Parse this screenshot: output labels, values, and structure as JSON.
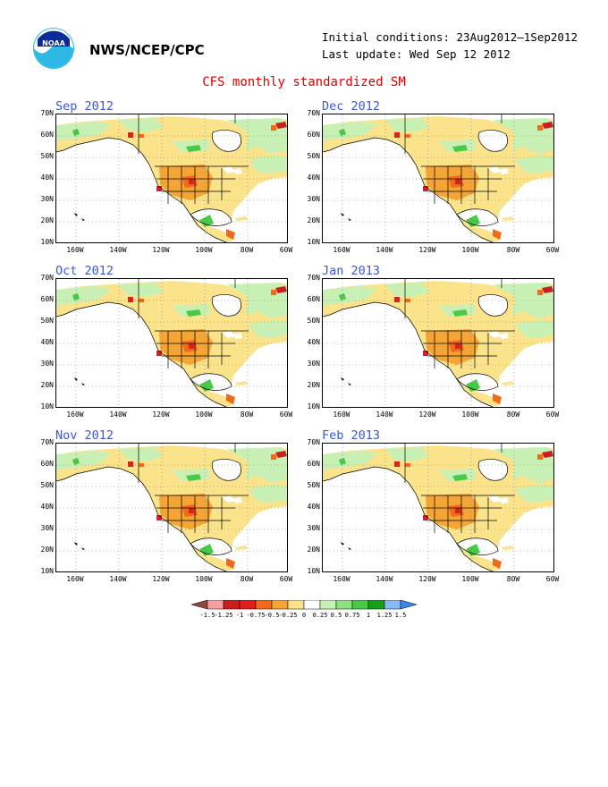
{
  "header": {
    "org": "NWS/NCEP/CPC",
    "initial_conditions": "Initial conditions: 23Aug2012—1Sep2012",
    "last_update": "Last update: Wed Sep 12 2012",
    "logo_icon": "noaa-logo-icon",
    "logo_text": "NOAA"
  },
  "title": "CFS monthly standardized SM",
  "panels": [
    {
      "label": "Sep 2012"
    },
    {
      "label": "Dec 2012"
    },
    {
      "label": "Oct 2012"
    },
    {
      "label": "Jan 2013"
    },
    {
      "label": "Nov 2012"
    },
    {
      "label": "Feb 2013"
    }
  ],
  "axes": {
    "lat_labels": [
      "70N",
      "60N",
      "50N",
      "40N",
      "30N",
      "20N",
      "10N"
    ],
    "lon_labels": [
      "160W",
      "140W",
      "120W",
      "100W",
      "80W",
      "60W"
    ]
  },
  "colorbar": {
    "labels": [
      "-1.5",
      "-1.25",
      "-1",
      "-0.75",
      "-0.5",
      "-0.25",
      "0",
      "0.25",
      "0.5",
      "0.75",
      "1",
      "1.25",
      "1.5"
    ],
    "colors": [
      "#8b4a3a",
      "#f3a0a0",
      "#c81e1e",
      "#e01e1e",
      "#f06a1a",
      "#f5a536",
      "#fbe38c",
      "#ffffff",
      "#c8f0b4",
      "#8ee080",
      "#4ac848",
      "#18a018",
      "#8ab8f0",
      "#3a88e8"
    ]
  }
}
